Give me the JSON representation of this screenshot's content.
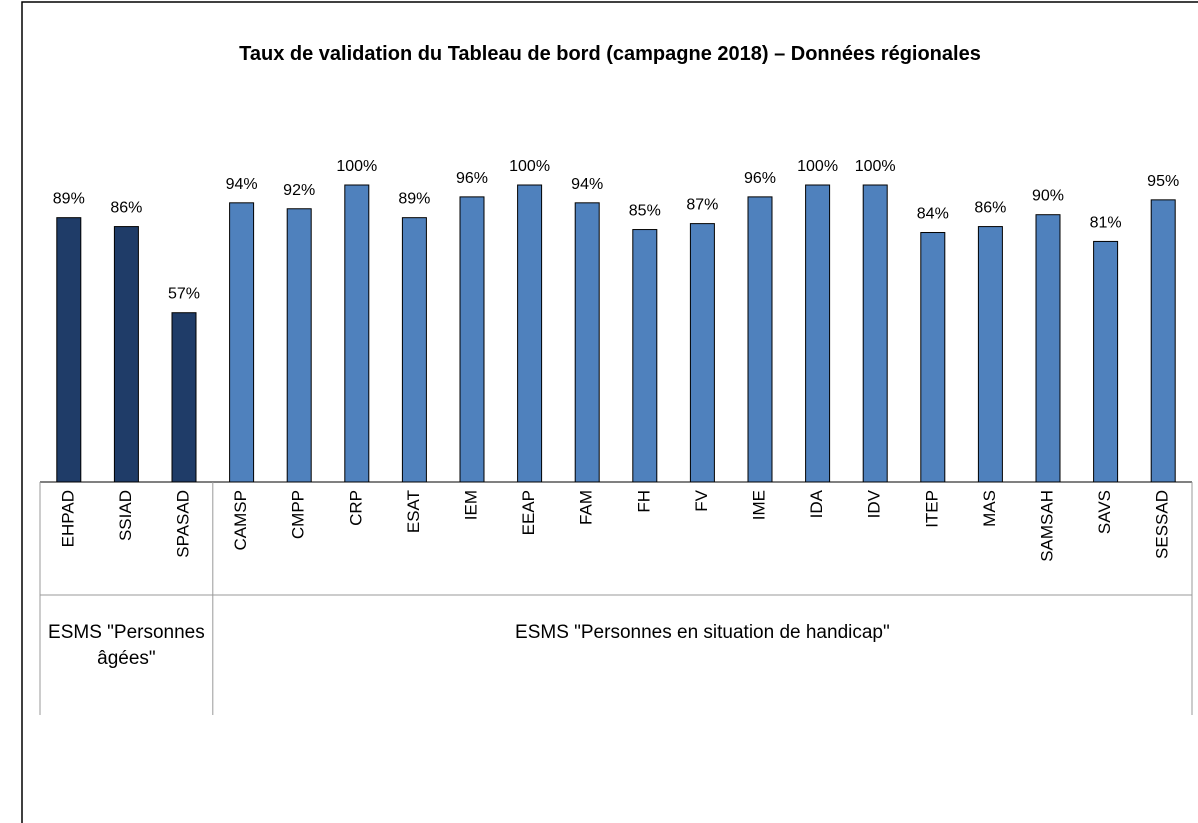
{
  "chart_data": {
    "type": "bar",
    "title": "Taux de validation du Tableau de bord (campagne 2018) – Données régionales",
    "categories": [
      "EHPAD",
      "SSIAD",
      "SPASAD",
      "CAMSP",
      "CMPP",
      "CRP",
      "ESAT",
      "IEM",
      "EEAP",
      "FAM",
      "FH",
      "FV",
      "IME",
      "IDA",
      "IDV",
      "ITEP",
      "MAS",
      "SAMSAH",
      "SAVS",
      "SESSAD"
    ],
    "values": [
      89,
      86,
      57,
      94,
      92,
      100,
      89,
      96,
      100,
      94,
      85,
      87,
      96,
      100,
      100,
      84,
      86,
      90,
      81,
      95
    ],
    "value_labels": [
      "89%",
      "86%",
      "57%",
      "94%",
      "92%",
      "100%",
      "89%",
      "96%",
      "100%",
      "94%",
      "85%",
      "87%",
      "96%",
      "100%",
      "100%",
      "84%",
      "86%",
      "90%",
      "81%",
      "95%"
    ],
    "groups": [
      {
        "name": "ESMS \"Personnes âgées\"",
        "span": 3,
        "color": "#1f3c68"
      },
      {
        "name": "ESMS \"Personnes en situation de handicap\"",
        "span": 17,
        "color": "#4f81bd"
      }
    ],
    "ylim": [
      0,
      100
    ]
  }
}
